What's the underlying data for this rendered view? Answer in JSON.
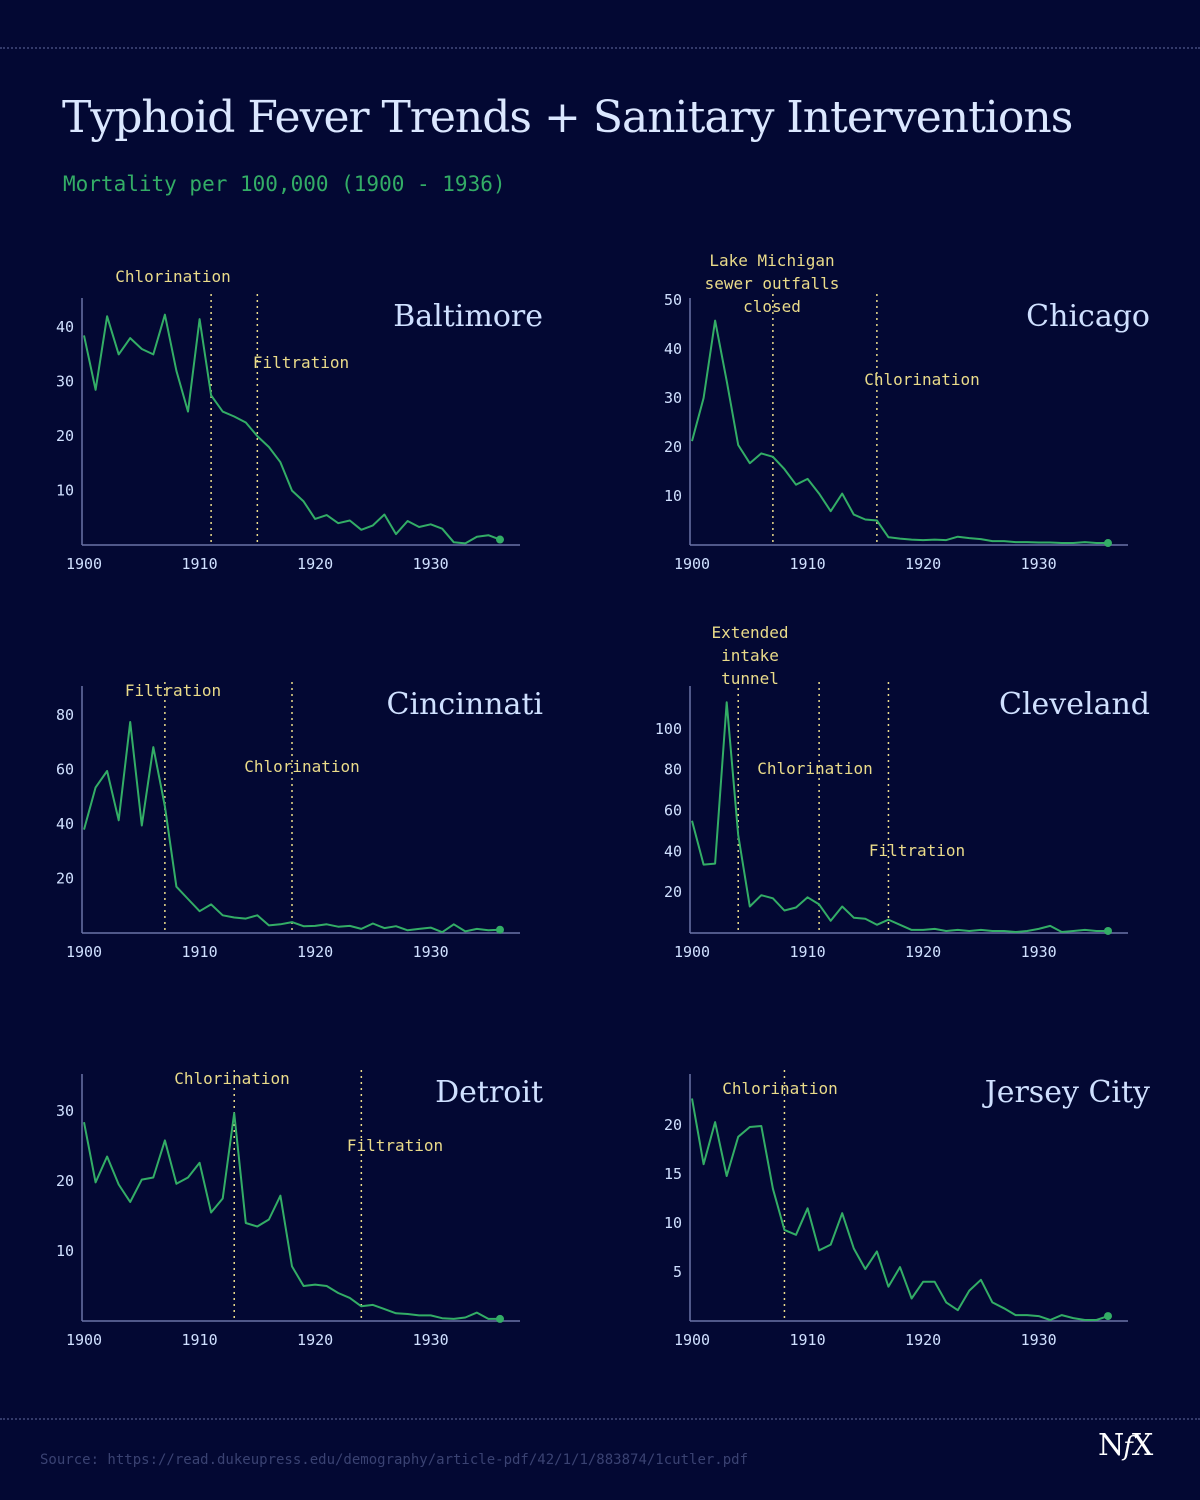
{
  "title": "Typhoid Fever Trends + Sanitary Interventions",
  "subtitle": "Mortality per 100,000 (1900 - 1936)",
  "source": "Source: https://read.dukeupress.edu/demography/article-pdf/42/1/1/883874/1cutler.pdf",
  "logo": {
    "letter_n": "N",
    "letter_f": "f",
    "letter_x": "X"
  },
  "colors": {
    "background": "#030833",
    "line": "#33ad66",
    "annotation": "#eadb8a",
    "axis": "#6b72a8",
    "tick_label": "#d0e0ff",
    "city_name": "#cfe0ff"
  },
  "chart_data": [
    {
      "type": "line",
      "name": "Baltimore",
      "xlim": [
        1900,
        1936
      ],
      "ylim": [
        0,
        45
      ],
      "xticks": [
        1900,
        1910,
        1920,
        1930
      ],
      "yticks": [
        10,
        20,
        30,
        40
      ],
      "x": [
        1900,
        1901,
        1902,
        1903,
        1904,
        1905,
        1906,
        1907,
        1908,
        1909,
        1910,
        1911,
        1912,
        1913,
        1914,
        1915,
        1916,
        1917,
        1918,
        1919,
        1920,
        1921,
        1922,
        1923,
        1924,
        1925,
        1926,
        1927,
        1928,
        1929,
        1930,
        1931,
        1932,
        1933,
        1934,
        1935,
        1936
      ],
      "values": [
        38.5,
        28.5,
        42,
        35,
        38,
        36,
        35,
        42.3,
        32,
        24.5,
        41.5,
        27.5,
        24.5,
        23.6,
        22.5,
        20,
        18,
        15.2,
        10,
        8,
        4.8,
        5.5,
        4,
        4.5,
        2.8,
        3.6,
        5.6,
        2,
        4.4,
        3.3,
        3.8,
        3,
        0.5,
        0.3,
        1.5,
        1.8,
        1
      ],
      "annotations": [
        {
          "year": 1911,
          "label": "Chlorination"
        },
        {
          "year": 1915,
          "label": "Filtration"
        }
      ]
    },
    {
      "type": "line",
      "name": "Chicago",
      "xlim": [
        1900,
        1936
      ],
      "ylim": [
        0,
        50
      ],
      "xticks": [
        1900,
        1910,
        1920,
        1930
      ],
      "yticks": [
        10,
        20,
        30,
        40,
        50
      ],
      "x": [
        1900,
        1901,
        1902,
        1903,
        1904,
        1905,
        1906,
        1907,
        1908,
        1909,
        1910,
        1911,
        1912,
        1913,
        1914,
        1915,
        1916,
        1917,
        1918,
        1919,
        1920,
        1921,
        1922,
        1923,
        1924,
        1925,
        1926,
        1927,
        1928,
        1929,
        1930,
        1931,
        1932,
        1933,
        1934,
        1935,
        1936
      ],
      "values": [
        21.2,
        30,
        45.8,
        33.5,
        20.4,
        16.7,
        18.7,
        18,
        15.5,
        12.3,
        13.5,
        10.5,
        6.9,
        10.5,
        6.2,
        5.2,
        5,
        1.6,
        1.3,
        1.1,
        1,
        1.1,
        1,
        1.7,
        1.4,
        1.2,
        0.8,
        0.8,
        0.6,
        0.6,
        0.5,
        0.5,
        0.4,
        0.4,
        0.6,
        0.4,
        0.4
      ],
      "annotations": [
        {
          "year": 1907,
          "label": "Lake Michigan sewer outfalls closed"
        },
        {
          "year": 1916,
          "label": "Chlorination"
        }
      ]
    },
    {
      "type": "line",
      "name": "Cincinnati",
      "xlim": [
        1900,
        1936
      ],
      "ylim": [
        0,
        90
      ],
      "xticks": [
        1900,
        1910,
        1920,
        1930
      ],
      "yticks": [
        20,
        40,
        60,
        80
      ],
      "x": [
        1900,
        1901,
        1902,
        1903,
        1904,
        1905,
        1906,
        1907,
        1908,
        1909,
        1910,
        1911,
        1912,
        1913,
        1914,
        1915,
        1916,
        1917,
        1918,
        1919,
        1920,
        1921,
        1922,
        1923,
        1924,
        1925,
        1926,
        1927,
        1928,
        1929,
        1930,
        1931,
        1932,
        1933,
        1934,
        1935,
        1936
      ],
      "values": [
        38,
        53.5,
        59.5,
        41.4,
        77.5,
        39.5,
        68.3,
        46.5,
        17,
        12.5,
        8,
        10.5,
        6.5,
        5.7,
        5.3,
        6.5,
        2.8,
        3.2,
        4,
        2.5,
        2.6,
        3.2,
        2.3,
        2.6,
        1.5,
        3.5,
        1.8,
        2.5,
        1,
        1.5,
        2,
        0.3,
        3.2,
        0.6,
        1.5,
        1,
        1.2
      ],
      "annotations": [
        {
          "year": 1907,
          "label": "Filtration"
        },
        {
          "year": 1918,
          "label": "Chlorination"
        }
      ]
    },
    {
      "type": "line",
      "name": "Cleveland",
      "xlim": [
        1900,
        1936
      ],
      "ylim": [
        0,
        120
      ],
      "xticks": [
        1900,
        1910,
        1920,
        1930
      ],
      "yticks": [
        20,
        40,
        60,
        80,
        100
      ],
      "x": [
        1900,
        1901,
        1902,
        1903,
        1904,
        1905,
        1906,
        1907,
        1908,
        1909,
        1910,
        1911,
        1912,
        1913,
        1914,
        1915,
        1916,
        1917,
        1918,
        1919,
        1920,
        1921,
        1922,
        1923,
        1924,
        1925,
        1926,
        1927,
        1928,
        1929,
        1930,
        1931,
        1932,
        1933,
        1934,
        1935,
        1936
      ],
      "values": [
        55,
        33.5,
        34,
        113,
        48,
        13,
        18.5,
        17,
        11,
        12.5,
        17.5,
        14,
        6,
        13,
        7.5,
        7,
        4,
        6.5,
        4,
        1.5,
        1.5,
        2,
        1,
        1.5,
        1,
        1.5,
        1,
        1,
        0.5,
        1,
        2,
        3.5,
        0.5,
        1,
        1.5,
        1,
        1
      ],
      "annotations": [
        {
          "year": 1904,
          "label": "Extended intake tunnel"
        },
        {
          "year": 1911,
          "label": "Chlorination"
        },
        {
          "year": 1917,
          "label": "Filtration"
        }
      ]
    },
    {
      "type": "line",
      "name": "Detroit",
      "xlim": [
        1900,
        1936
      ],
      "ylim": [
        0,
        35
      ],
      "xticks": [
        1900,
        1910,
        1920,
        1930
      ],
      "yticks": [
        10,
        20,
        30
      ],
      "x": [
        1900,
        1901,
        1902,
        1903,
        1904,
        1905,
        1906,
        1907,
        1908,
        1909,
        1910,
        1911,
        1912,
        1913,
        1914,
        1915,
        1916,
        1917,
        1918,
        1919,
        1920,
        1921,
        1922,
        1923,
        1924,
        1925,
        1926,
        1927,
        1928,
        1929,
        1930,
        1931,
        1932,
        1933,
        1934,
        1935,
        1936
      ],
      "values": [
        28.4,
        19.8,
        23.5,
        19.5,
        17,
        20.2,
        20.5,
        25.8,
        19.6,
        20.5,
        22.6,
        15.5,
        17.5,
        29.7,
        14,
        13.5,
        14.5,
        17.9,
        7.8,
        5,
        5.2,
        5,
        4,
        3.3,
        2.1,
        2.3,
        1.7,
        1.1,
        1,
        0.8,
        0.8,
        0.4,
        0.3,
        0.5,
        1.2,
        0.3,
        0.3
      ],
      "annotations": [
        {
          "year": 1913,
          "label": "Chlorination"
        },
        {
          "year": 1924,
          "label": "Filtration"
        }
      ]
    },
    {
      "type": "line",
      "name": "Jersey City",
      "xlim": [
        1900,
        1936
      ],
      "ylim": [
        0,
        25
      ],
      "xticks": [
        1900,
        1910,
        1920,
        1930
      ],
      "yticks": [
        5,
        10,
        15,
        20
      ],
      "x": [
        1900,
        1901,
        1902,
        1903,
        1904,
        1905,
        1906,
        1907,
        1908,
        1909,
        1910,
        1911,
        1912,
        1913,
        1914,
        1915,
        1916,
        1917,
        1918,
        1919,
        1920,
        1921,
        1922,
        1923,
        1924,
        1925,
        1926,
        1927,
        1928,
        1929,
        1930,
        1931,
        1932,
        1933,
        1934,
        1935,
        1936
      ],
      "values": [
        22.7,
        16,
        20.3,
        14.8,
        18.8,
        19.8,
        19.9,
        13.5,
        9.3,
        8.8,
        11.5,
        7.2,
        7.8,
        11,
        7.4,
        5.3,
        7.1,
        3.5,
        5.5,
        2.3,
        4,
        4,
        1.9,
        1.1,
        3.1,
        4.2,
        1.9,
        1.3,
        0.6,
        0.6,
        0.5,
        0.1,
        0.6,
        0.3,
        0.1,
        0.1,
        0.5
      ],
      "annotations": [
        {
          "year": 1908,
          "label": "Chlorination"
        }
      ]
    }
  ]
}
